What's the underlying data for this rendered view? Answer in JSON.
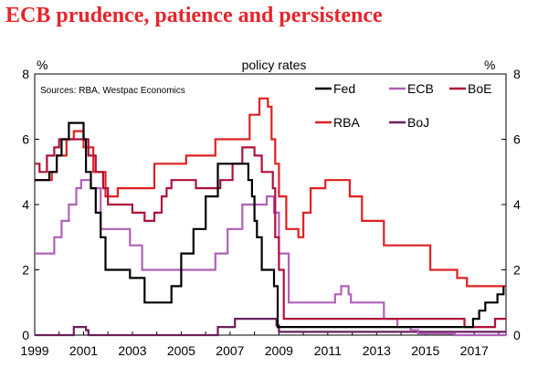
{
  "title": "ECB prudence, patience and persistence",
  "colors": {
    "title": "#e8242a",
    "Fed": "#000000",
    "ECB": "#b060b8",
    "BoE": "#b0103a",
    "RBA": "#e02020",
    "BoJ": "#6a1f5a"
  },
  "chart_data": {
    "type": "line",
    "title": "policy rates",
    "subtitle": "Sources: RBA, Westpac Economics",
    "ylabel_left": "%",
    "ylabel_right": "%",
    "xlim": [
      1999,
      2018.3
    ],
    "ylim": [
      0,
      8
    ],
    "x_ticks": [
      1999,
      2001,
      2003,
      2005,
      2007,
      2009,
      2011,
      2013,
      2015,
      2017
    ],
    "y_ticks": [
      0,
      2,
      4,
      6,
      8
    ],
    "grid": false,
    "legend_position": "top-right",
    "series": [
      {
        "name": "Fed",
        "color": "#000000",
        "x": [
          1999.0,
          1999.5,
          1999.6,
          1999.9,
          2000.1,
          2000.4,
          2000.9,
          2001.0,
          2001.1,
          2001.3,
          2001.5,
          2001.7,
          2001.9,
          2002.9,
          2003.5,
          2004.5,
          2004.6,
          2005.0,
          2005.5,
          2006.0,
          2006.5,
          2007.6,
          2007.75,
          2007.9,
          2008.0,
          2008.1,
          2008.3,
          2008.8,
          2008.95,
          2015.95,
          2016.95,
          2017.2,
          2017.45,
          2017.95,
          2018.2
        ],
        "y": [
          4.75,
          4.75,
          5.0,
          5.5,
          6.0,
          6.5,
          6.5,
          6.0,
          5.0,
          4.5,
          3.75,
          3.0,
          2.0,
          1.75,
          1.0,
          1.0,
          1.5,
          2.5,
          3.25,
          4.25,
          5.25,
          5.25,
          4.75,
          4.25,
          3.5,
          3.0,
          2.0,
          1.5,
          0.25,
          0.25,
          0.5,
          0.75,
          1.0,
          1.25,
          1.5
        ]
      },
      {
        "name": "ECB",
        "color": "#b060b8",
        "x": [
          1999.0,
          1999.3,
          1999.8,
          2000.1,
          2000.4,
          2000.7,
          2000.9,
          2001.3,
          2001.7,
          2002.9,
          2003.4,
          2005.9,
          2006.4,
          2006.9,
          2007.5,
          2008.5,
          2008.8,
          2009.0,
          2009.4,
          2011.3,
          2011.55,
          2011.85,
          2011.95,
          2013.3,
          2013.85,
          2014.4,
          2014.7,
          2016.2,
          2018.3
        ],
        "y": [
          2.5,
          2.5,
          3.0,
          3.5,
          4.0,
          4.5,
          4.75,
          4.5,
          3.25,
          2.75,
          2.0,
          2.0,
          2.5,
          3.25,
          4.0,
          4.25,
          3.75,
          2.5,
          1.0,
          1.25,
          1.5,
          1.25,
          1.0,
          0.5,
          0.25,
          0.15,
          0.05,
          0.0,
          0.0
        ]
      },
      {
        "name": "BoE",
        "color": "#b0103a",
        "x": [
          1999.0,
          1999.2,
          1999.5,
          1999.8,
          2000.0,
          2000.2,
          2001.0,
          2001.2,
          2001.5,
          2001.8,
          2002.0,
          2003.0,
          2003.5,
          2003.9,
          2004.2,
          2004.4,
          2004.6,
          2005.6,
          2006.6,
          2007.1,
          2007.5,
          2008.0,
          2008.3,
          2008.75,
          2008.85,
          2009.0,
          2009.2,
          2016.6,
          2017.85,
          2018.3
        ],
        "y": [
          5.25,
          5.0,
          5.5,
          5.75,
          6.0,
          6.0,
          6.0,
          5.5,
          5.0,
          4.5,
          4.0,
          3.75,
          3.5,
          3.75,
          4.25,
          4.5,
          4.75,
          4.5,
          4.75,
          5.25,
          5.75,
          5.5,
          5.0,
          4.5,
          3.0,
          2.0,
          0.5,
          0.25,
          0.5,
          0.5
        ]
      },
      {
        "name": "RBA",
        "color": "#e02020",
        "x": [
          1999.0,
          1999.7,
          1999.9,
          2000.3,
          2000.6,
          2001.0,
          2001.4,
          2001.9,
          2002.4,
          2003.9,
          2005.2,
          2006.4,
          2007.8,
          2008.2,
          2008.55,
          2008.7,
          2008.85,
          2009.0,
          2009.3,
          2009.8,
          2010.0,
          2010.3,
          2010.9,
          2011.9,
          2012.4,
          2013.3,
          2015.2,
          2016.3,
          2016.7,
          2018.3
        ],
        "y": [
          4.75,
          5.0,
          5.5,
          6.0,
          6.25,
          5.75,
          5.0,
          4.25,
          4.5,
          5.25,
          5.5,
          6.0,
          6.75,
          7.25,
          7.0,
          6.0,
          5.25,
          4.25,
          3.25,
          3.0,
          3.75,
          4.5,
          4.75,
          4.25,
          3.5,
          2.75,
          2.0,
          1.75,
          1.5,
          1.5
        ]
      },
      {
        "name": "BoJ",
        "color": "#6a1f5a",
        "x": [
          1999.0,
          2000.6,
          2001.1,
          2001.2,
          2006.5,
          2007.2,
          2008.9,
          2009.0,
          2018.3
        ],
        "y": [
          0.0,
          0.25,
          0.15,
          0.0,
          0.25,
          0.5,
          0.3,
          0.1,
          0.1
        ]
      }
    ]
  }
}
